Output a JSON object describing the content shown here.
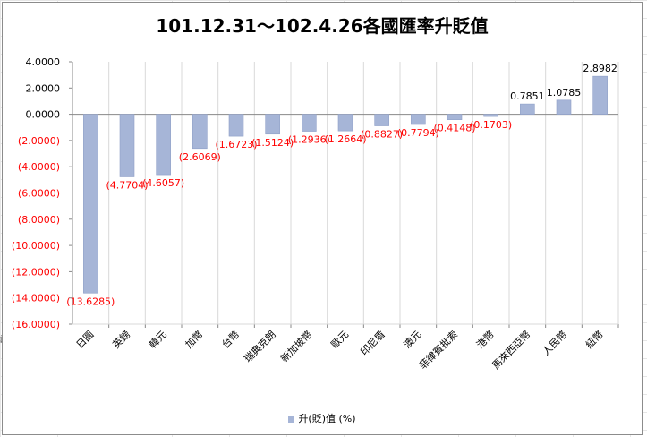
{
  "chart_data": {
    "type": "bar",
    "title": "101.12.31～102.4.26各國匯率升貶值",
    "categories": [
      "日圓",
      "英鎊",
      "韓元",
      "加幣",
      "台幣",
      "瑞典克朗",
      "新加坡幣",
      "歐元",
      "印尼盾",
      "澳元",
      "菲律賓批索",
      "港幣",
      "馬來西亞幣",
      "人民幣",
      "紐幣"
    ],
    "series": [
      {
        "name": "升(貶)值 (%)",
        "values": [
          -13.6285,
          -4.7704,
          -4.6057,
          -2.6069,
          -1.6723,
          -1.5124,
          -1.2936,
          -1.2664,
          -0.8827,
          -0.7794,
          -0.4148,
          -0.1703,
          0.7851,
          1.0785,
          2.8982
        ]
      }
    ],
    "data_labels": [
      "(13.6285)",
      "(4.7704)",
      "(4.6057)",
      "(2.6069)",
      "(1.6723)",
      "(1.5124)",
      "(1.2936)",
      "(1.2664)",
      "(0.8827)",
      "(0.7794)",
      "(0.4148)",
      "(0.1703)",
      "0.7851",
      "1.0785",
      "2.8982"
    ],
    "y_ticks": [
      "4.0000",
      "2.0000",
      "0.0000",
      "(2.0000)",
      "(4.0000)",
      "(6.0000)",
      "(8.0000)",
      "(10.0000)",
      "(12.0000)",
      "(14.0000)",
      "(16.0000)"
    ],
    "ylim": [
      -16,
      4
    ],
    "grid": "vertical",
    "legend": "bottom",
    "colors": {
      "bar": "#a6b5d7",
      "bar_edge": "#8fa0c8",
      "negative_text": "#ff0000",
      "positive_text": "#000000",
      "axis": "#888888",
      "grid": "#d9d9d9"
    }
  },
  "legend_label": "升(貶)值 (%)",
  "edge_mark": "謹"
}
